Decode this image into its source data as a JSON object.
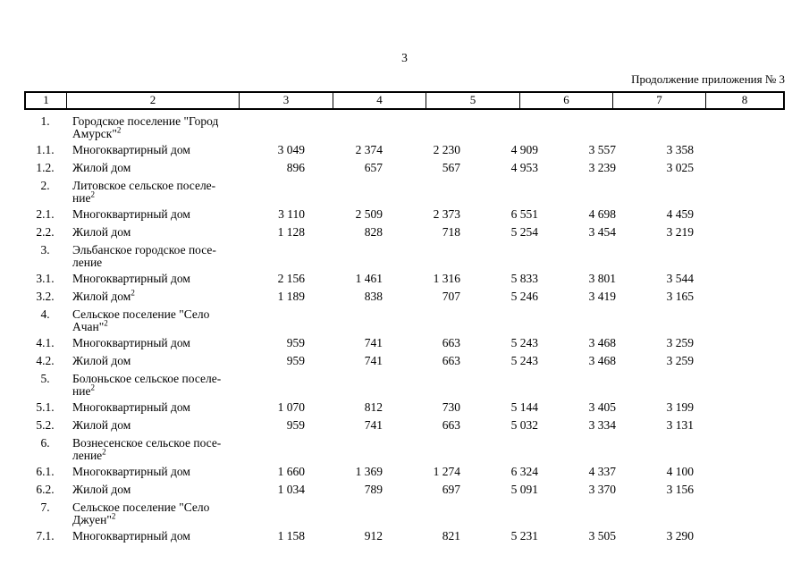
{
  "page": {
    "number": "3",
    "continuation_note": "Продолжение приложения № 3"
  },
  "colors": {
    "text": "#000000",
    "background": "#ffffff",
    "border": "#000000"
  },
  "table": {
    "header": [
      "1",
      "2",
      "3",
      "4",
      "5",
      "6",
      "7",
      "8"
    ],
    "rows": [
      {
        "num": "1.",
        "lines": [
          "Городское поселение \"Город",
          "Амурск\""
        ],
        "sup": "2",
        "values": []
      },
      {
        "num": "1.1.",
        "lines": [
          "Многоквартирный дом"
        ],
        "sup": "",
        "values": [
          "3 049",
          "2 374",
          "2 230",
          "4 909",
          "3 557",
          "3 358"
        ]
      },
      {
        "num": "1.2.",
        "lines": [
          "Жилой дом"
        ],
        "sup": "",
        "values": [
          "896",
          "657",
          "567",
          "4 953",
          "3 239",
          "3 025"
        ]
      },
      {
        "num": "2.",
        "lines": [
          "Литовское сельское поселе-",
          "ние"
        ],
        "sup": "2",
        "values": []
      },
      {
        "num": "2.1.",
        "lines": [
          "Многоквартирный дом"
        ],
        "sup": "",
        "values": [
          "3 110",
          "2 509",
          "2 373",
          "6 551",
          "4 698",
          "4 459"
        ]
      },
      {
        "num": "2.2.",
        "lines": [
          "Жилой дом"
        ],
        "sup": "",
        "values": [
          "1 128",
          "828",
          "718",
          "5 254",
          "3 454",
          "3 219"
        ]
      },
      {
        "num": "3.",
        "lines": [
          "Эльбанское городское посе-",
          "ление"
        ],
        "sup": "",
        "values": []
      },
      {
        "num": "3.1.",
        "lines": [
          "Многоквартирный дом"
        ],
        "sup": "",
        "values": [
          "2 156",
          "1 461",
          "1 316",
          "5 833",
          "3 801",
          "3 544"
        ]
      },
      {
        "num": "3.2.",
        "lines": [
          "Жилой дом"
        ],
        "sup": "2",
        "values": [
          "1 189",
          "838",
          "707",
          "5 246",
          "3 419",
          "3 165"
        ]
      },
      {
        "num": "4.",
        "lines": [
          "Сельское поселение \"Село",
          "Ачан\""
        ],
        "sup": "2",
        "values": []
      },
      {
        "num": "4.1.",
        "lines": [
          "Многоквартирный дом"
        ],
        "sup": "",
        "values": [
          "959",
          "741",
          "663",
          "5 243",
          "3 468",
          "3 259"
        ]
      },
      {
        "num": "4.2.",
        "lines": [
          "Жилой дом"
        ],
        "sup": "",
        "values": [
          "959",
          "741",
          "663",
          "5 243",
          "3 468",
          "3 259"
        ]
      },
      {
        "num": "5.",
        "lines": [
          "Болоньское сельское поселе-",
          "ние"
        ],
        "sup": "2",
        "values": []
      },
      {
        "num": "5.1.",
        "lines": [
          "Многоквартирный дом"
        ],
        "sup": "",
        "values": [
          "1 070",
          "812",
          "730",
          "5 144",
          "3 405",
          "3 199"
        ]
      },
      {
        "num": "5.2.",
        "lines": [
          "Жилой дом"
        ],
        "sup": "",
        "values": [
          "959",
          "741",
          "663",
          "5 032",
          "3 334",
          "3 131"
        ]
      },
      {
        "num": "6.",
        "lines": [
          "Вознесенское сельское посе-",
          "ление"
        ],
        "sup": "2",
        "values": []
      },
      {
        "num": "6.1.",
        "lines": [
          "Многоквартирный дом"
        ],
        "sup": "",
        "values": [
          "1 660",
          "1 369",
          "1 274",
          "6 324",
          "4 337",
          "4 100"
        ]
      },
      {
        "num": "6.2.",
        "lines": [
          "Жилой дом"
        ],
        "sup": "",
        "values": [
          "1 034",
          "789",
          "697",
          "5 091",
          "3 370",
          "3 156"
        ]
      },
      {
        "num": "7.",
        "lines": [
          "Сельское поселение \"Село",
          "Джуен\""
        ],
        "sup": "2",
        "values": []
      },
      {
        "num": "7.1.",
        "lines": [
          "Многоквартирный дом"
        ],
        "sup": "",
        "values": [
          "1 158",
          "912",
          "821",
          "5 231",
          "3 505",
          "3 290"
        ]
      }
    ]
  }
}
